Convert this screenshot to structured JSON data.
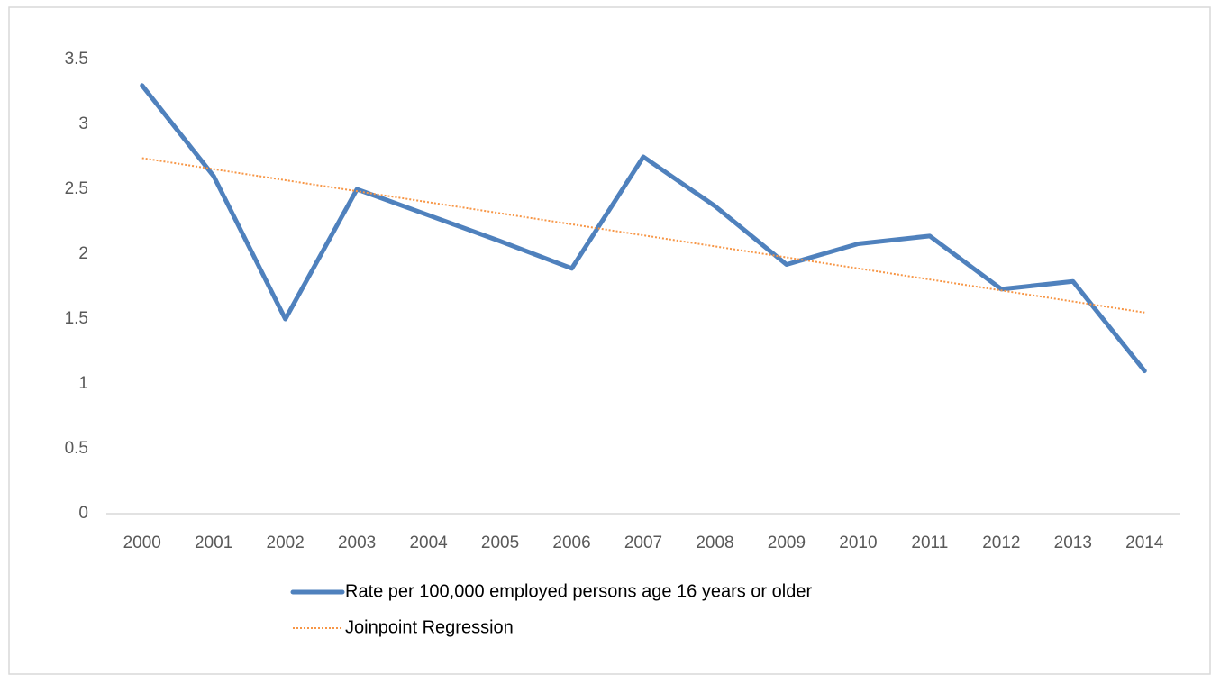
{
  "chart_data": {
    "type": "line",
    "categories": [
      "2000",
      "2001",
      "2002",
      "2003",
      "2004",
      "2005",
      "2006",
      "2007",
      "2008",
      "2009",
      "2010",
      "2011",
      "2012",
      "2013",
      "2014"
    ],
    "series": [
      {
        "name": "Rate per 100,000 employed persons age 16 years or older",
        "color": "#4f81bd",
        "style": "solid",
        "values": [
          3.3,
          2.6,
          1.5,
          2.5,
          2.3,
          2.1,
          1.89,
          2.75,
          2.37,
          1.92,
          2.08,
          2.14,
          1.73,
          1.79,
          1.1
        ]
      },
      {
        "name": "Joinpoint Regression",
        "color": "#f79646",
        "style": "dotted",
        "values": [
          2.74,
          2.655,
          2.57,
          2.485,
          2.4,
          2.315,
          2.23,
          2.145,
          2.06,
          1.975,
          1.89,
          1.805,
          1.72,
          1.635,
          1.55
        ]
      }
    ],
    "ylim": [
      0,
      3.5
    ],
    "yticks": [
      0,
      0.5,
      1,
      1.5,
      2,
      2.5,
      3,
      3.5
    ],
    "grid": false
  }
}
